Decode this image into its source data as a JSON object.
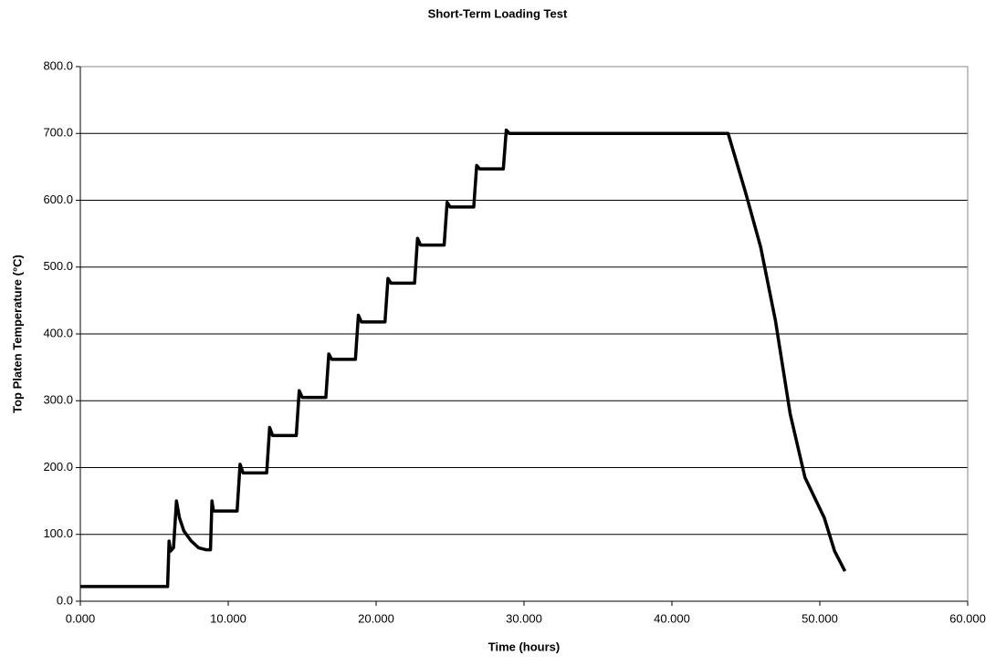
{
  "chart_data": {
    "type": "line",
    "title": "Short-Term Loading Test",
    "xlabel": "Time (hours)",
    "ylabel": "Top Platen Temperature (°C)",
    "xlim": [
      0,
      60
    ],
    "xticks": [
      {
        "value": 0,
        "label": "0.000"
      },
      {
        "value": 10,
        "label": "10.000"
      },
      {
        "value": 20,
        "label": "20.000"
      },
      {
        "value": 30,
        "label": "30.000"
      },
      {
        "value": 40,
        "label": "40.000"
      },
      {
        "value": 50,
        "label": "50.000"
      },
      {
        "value": 60,
        "label": "60.000"
      }
    ],
    "ylim": [
      0,
      800
    ],
    "yticks": [
      {
        "value": 0,
        "label": "0.0"
      },
      {
        "value": 100,
        "label": "100.0"
      },
      {
        "value": 200,
        "label": "200.0"
      },
      {
        "value": 300,
        "label": "300.0"
      },
      {
        "value": 400,
        "label": "400.0"
      },
      {
        "value": 500,
        "label": "500.0"
      },
      {
        "value": 600,
        "label": "600.0"
      },
      {
        "value": 700,
        "label": "700.0"
      },
      {
        "value": 800,
        "label": "800.0"
      }
    ],
    "grid": true,
    "series": [
      {
        "color": "#000000",
        "x": [
          0,
          5.8,
          5.9,
          6.0,
          6.1,
          6.3,
          6.5,
          6.7,
          7.0,
          7.5,
          8.0,
          8.5,
          8.8,
          8.9,
          9.0,
          10.6,
          10.8,
          11.0,
          12.6,
          12.8,
          13.0,
          14.6,
          14.8,
          15.0,
          16.6,
          16.8,
          17.0,
          18.6,
          18.8,
          19.0,
          20.6,
          20.8,
          21.0,
          22.6,
          22.8,
          23.0,
          24.6,
          24.8,
          25.0,
          26.6,
          26.8,
          27.0,
          28.6,
          28.8,
          29.0,
          43.5,
          43.8,
          45,
          46,
          47,
          48,
          49,
          50.3,
          51,
          51.7
        ],
        "values": [
          22,
          22,
          22,
          90,
          75,
          80,
          150,
          125,
          105,
          90,
          80,
          77,
          77,
          150,
          135,
          135,
          205,
          192,
          192,
          260,
          248,
          248,
          315,
          305,
          305,
          370,
          362,
          362,
          428,
          418,
          418,
          483,
          476,
          476,
          543,
          533,
          533,
          597,
          590,
          590,
          652,
          647,
          647,
          705,
          700,
          700,
          700,
          610,
          530,
          420,
          280,
          185,
          125,
          75,
          45
        ]
      }
    ]
  }
}
